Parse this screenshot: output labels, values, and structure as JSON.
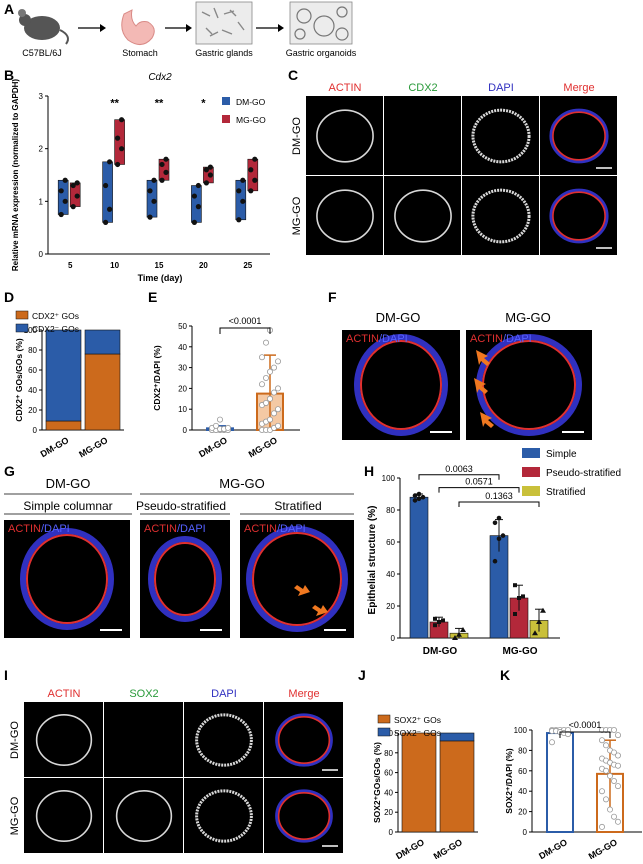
{
  "panels": {
    "A": {
      "letter": "A",
      "steps": [
        "C57BL/6J",
        "Stomach",
        "Gastric glands",
        "Gastric organoids"
      ]
    },
    "B": {
      "letter": "B"
    },
    "C": {
      "letter": "C",
      "columns": [
        "ACTIN",
        "CDX2",
        "DAPI",
        "Merge"
      ],
      "rows": [
        "DM-GO",
        "MG-GO"
      ]
    },
    "D": {
      "letter": "D"
    },
    "E": {
      "letter": "E"
    },
    "F": {
      "letter": "F",
      "titles": [
        "DM-GO",
        "MG-GO"
      ],
      "overlay": [
        "ACTIN",
        "/DAPI"
      ]
    },
    "G": {
      "letter": "G",
      "group_dm": "DM-GO",
      "group_mg": "MG-GO",
      "subtitles": [
        "Simple columnar",
        "Pseudo-stratified",
        "Stratified"
      ],
      "overlay": [
        "ACTIN",
        "/DAPI"
      ]
    },
    "H": {
      "letter": "H"
    },
    "I": {
      "letter": "I",
      "columns": [
        "ACTIN",
        "SOX2",
        "DAPI",
        "Merge"
      ],
      "rows": [
        "DM-GO",
        "MG-GO"
      ]
    },
    "J": {
      "letter": "J"
    },
    "K": {
      "letter": "K"
    }
  },
  "colors": {
    "dm": "#2b5ca8",
    "mg": "#b3283a",
    "cdx2_pos": "#cc6a1c",
    "stratified": "#c9c03a",
    "actin": "#e03030",
    "dapi": "#3030c0",
    "marker2": "#2a9a3a",
    "arrow": "#f07820"
  },
  "chart_data": [
    {
      "panel": "B",
      "type": "box",
      "title": "Cdx2",
      "xlabel": "Time (day)",
      "ylabel": "Relative mRNA expression (normalized to GAPDH)",
      "categories": [
        "5",
        "10",
        "15",
        "20",
        "25"
      ],
      "ylim": [
        0,
        3
      ],
      "yticks": [
        "0",
        "1",
        "2",
        "3"
      ],
      "series": [
        {
          "name": "DM-GO",
          "points": [
            [
              0.75,
              1.0,
              1.2,
              1.4
            ],
            [
              0.6,
              0.85,
              1.3,
              1.75
            ],
            [
              0.7,
              1.0,
              1.2,
              1.4
            ],
            [
              0.6,
              0.9,
              1.1,
              1.3
            ],
            [
              0.65,
              1.0,
              1.2,
              1.4
            ]
          ]
        },
        {
          "name": "MG-GO",
          "points": [
            [
              0.9,
              1.1,
              1.3,
              1.35
            ],
            [
              1.7,
              2.0,
              2.2,
              2.55
            ],
            [
              1.4,
              1.55,
              1.7,
              1.8
            ],
            [
              1.35,
              1.5,
              1.6,
              1.65
            ],
            [
              1.2,
              1.4,
              1.6,
              1.8
            ]
          ]
        }
      ],
      "significance": [
        "",
        "**",
        "**",
        "*",
        ""
      ]
    },
    {
      "panel": "D",
      "type": "stacked_bar",
      "ylabel": "CDX2⁺ GOs/GOs (%)",
      "categories": [
        "DM-GO",
        "MG-GO"
      ],
      "ylim": [
        0,
        100
      ],
      "yticks": [
        "0",
        "20",
        "40",
        "60",
        "80",
        "100"
      ],
      "series": [
        {
          "name": "CDX2⁺ GOs",
          "values": [
            9,
            76
          ]
        },
        {
          "name": "CDX2⁻ GOs",
          "values": [
            91,
            24
          ]
        }
      ]
    },
    {
      "panel": "E",
      "type": "bar",
      "ylabel": "CDX2⁺/DAPI (%)",
      "categories": [
        "DM-GO",
        "MG-GO"
      ],
      "ylim": [
        0,
        50
      ],
      "yticks": [
        "0",
        "10",
        "20",
        "30",
        "40",
        "50"
      ],
      "values": [
        0.8,
        17.5
      ],
      "errors": [
        1.2,
        18.5
      ],
      "points": [
        [
          0,
          0,
          0,
          0,
          0,
          0,
          0,
          0,
          0,
          0,
          0,
          0,
          0.5,
          0.5,
          1,
          1,
          2,
          5
        ],
        [
          0,
          0,
          0,
          1,
          2,
          3,
          4,
          5,
          8,
          10,
          12,
          13,
          15,
          18,
          20,
          22,
          25,
          28,
          30,
          33,
          35,
          42,
          48
        ]
      ],
      "pvalue": "<0.0001"
    },
    {
      "panel": "H",
      "type": "bar",
      "ylabel": "Epithelial structure (%)",
      "categories": [
        "DM-GO",
        "MG-GO"
      ],
      "ylim": [
        0,
        100
      ],
      "yticks": [
        "0",
        "20",
        "40",
        "60",
        "80",
        "100"
      ],
      "legend": "top-right",
      "series": [
        {
          "name": "Simple",
          "values": [
            88,
            64
          ],
          "errors": [
            2,
            10
          ],
          "points": [
            [
              86,
              87,
              88,
              89,
              90
            ],
            [
              48,
              62,
              64,
              72,
              75
            ]
          ]
        },
        {
          "name": "Pseudo-stratified",
          "values": [
            10,
            25
          ],
          "errors": [
            3,
            8
          ],
          "points": [
            [
              8,
              10,
              11,
              12
            ],
            [
              15,
              25,
              26,
              33
            ]
          ]
        },
        {
          "name": "Stratified",
          "values": [
            3,
            11
          ],
          "errors": [
            3,
            7
          ],
          "points": [
            [
              0,
              2,
              5
            ],
            [
              3,
              10,
              17
            ]
          ]
        }
      ],
      "pvalues": [
        "0.0063",
        "0.0571",
        "0.1363"
      ]
    },
    {
      "panel": "J",
      "type": "stacked_bar",
      "ylabel": "SOX2⁺GOs/GOs (%)",
      "categories": [
        "DM-GO",
        "MG-GO"
      ],
      "ylim": [
        0,
        100
      ],
      "yticks": [
        "0",
        "20",
        "40",
        "60",
        "80",
        "100"
      ],
      "series": [
        {
          "name": "SOX2⁺ GOs",
          "values": [
            100,
            92
          ]
        },
        {
          "name": "SOX2⁻ GOs",
          "values": [
            0,
            8
          ]
        }
      ]
    },
    {
      "panel": "K",
      "type": "bar",
      "ylabel": "SOX2⁺/DAPI (%)",
      "categories": [
        "DM-GO",
        "MG-GO"
      ],
      "ylim": [
        0,
        100
      ],
      "yticks": [
        "0",
        "20",
        "40",
        "60",
        "80",
        "100"
      ],
      "values": [
        97,
        57
      ],
      "errors": [
        2,
        33
      ],
      "points": [
        [
          100,
          100,
          100,
          100,
          100,
          99,
          99,
          98,
          97,
          96,
          88
        ],
        [
          100,
          100,
          100,
          100,
          95,
          90,
          85,
          80,
          78,
          75,
          72,
          70,
          68,
          66,
          65,
          62,
          60,
          55,
          50,
          45,
          40,
          32,
          22,
          15,
          10,
          5
        ]
      ],
      "pvalue": "<0.0001"
    }
  ]
}
